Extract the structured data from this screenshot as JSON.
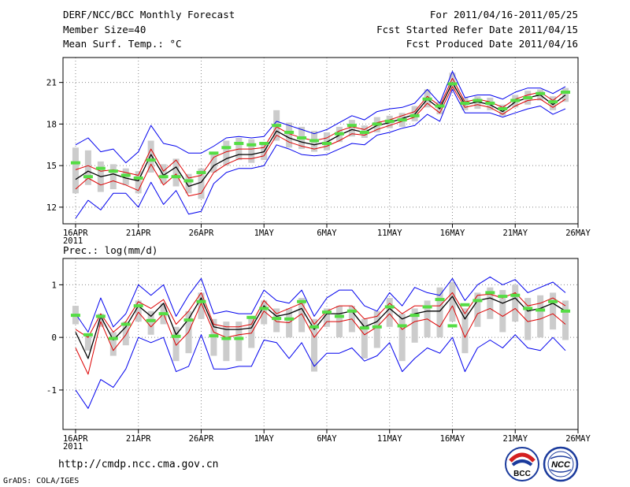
{
  "header": {
    "title": "DERF/NCC/BCC Monthly Forecast",
    "member_size": "Member Size=40",
    "variable": "Mean Surf. Temp.: °C",
    "period": "For 2011/04/16-2011/05/25",
    "started": "Fcst Started Refer Date 2011/04/15",
    "produced": "Fcst Produced Date 2011/04/16"
  },
  "footer": {
    "url": "http://cmdp.ncc.cma.gov.cn",
    "credit": "GrADS: COLA/IGES",
    "logo_bcc": "BCC",
    "logo_ncc": "NCC"
  },
  "colors": {
    "envelope": "#0000ee",
    "spread": "#dd0000",
    "mean": "#000000",
    "obs": "#55dd44",
    "box": "#cccccc",
    "grid": "#888888"
  },
  "chart_data": [
    {
      "type": "line",
      "title": "Mean Surf. Temp.: °C",
      "x_ticks": [
        {
          "day": 1,
          "label": "16APR",
          "sub": "2011"
        },
        {
          "day": 6,
          "label": "21APR"
        },
        {
          "day": 11,
          "label": "26APR"
        },
        {
          "day": 16,
          "label": "1MAY"
        },
        {
          "day": 21,
          "label": "6MAY"
        },
        {
          "day": 26,
          "label": "11MAY"
        },
        {
          "day": 31,
          "label": "16MAY"
        },
        {
          "day": 36,
          "label": "21MAY"
        },
        {
          "day": 41,
          "label": "26MAY"
        }
      ],
      "xlim": [
        0,
        41
      ],
      "ylim": [
        10.8,
        22.8
      ],
      "y_ticks": [
        12,
        15,
        18,
        21
      ],
      "days": [
        1,
        2,
        3,
        4,
        5,
        6,
        7,
        8,
        9,
        10,
        11,
        12,
        13,
        14,
        15,
        16,
        17,
        18,
        19,
        20,
        21,
        22,
        23,
        24,
        25,
        26,
        27,
        28,
        29,
        30,
        31,
        32,
        33,
        34,
        35,
        36,
        37,
        38,
        39,
        40
      ],
      "series": [
        {
          "name": "max",
          "values": [
            16.5,
            17.0,
            16.0,
            16.2,
            15.2,
            16.0,
            17.9,
            16.6,
            16.4,
            15.9,
            15.9,
            16.4,
            17.0,
            17.1,
            17.0,
            17.1,
            18.2,
            17.9,
            17.6,
            17.3,
            17.6,
            18.1,
            18.6,
            18.3,
            18.9,
            19.1,
            19.2,
            19.5,
            20.5,
            19.5,
            21.8,
            19.9,
            20.1,
            20.1,
            19.8,
            20.3,
            20.6,
            20.6,
            20.2,
            20.7
          ]
        },
        {
          "name": "upper",
          "values": [
            14.7,
            15.0,
            14.6,
            14.7,
            14.5,
            14.3,
            16.2,
            14.6,
            15.4,
            14.1,
            14.3,
            15.6,
            16.0,
            16.2,
            16.2,
            16.3,
            17.8,
            17.3,
            17.0,
            16.8,
            17.0,
            17.5,
            17.8,
            17.6,
            18.1,
            18.3,
            18.6,
            18.9,
            20.0,
            19.3,
            21.3,
            19.6,
            19.8,
            19.6,
            19.2,
            19.8,
            20.1,
            20.3,
            19.7,
            20.4
          ]
        },
        {
          "name": "mean",
          "values": [
            14.0,
            14.6,
            14.2,
            14.4,
            14.1,
            13.9,
            15.8,
            14.3,
            14.9,
            13.5,
            13.8,
            15.0,
            15.5,
            15.8,
            15.8,
            16.0,
            17.5,
            17.0,
            16.7,
            16.5,
            16.7,
            17.2,
            17.6,
            17.4,
            17.9,
            18.1,
            18.4,
            18.7,
            19.8,
            19.1,
            21.0,
            19.4,
            19.6,
            19.4,
            18.9,
            19.6,
            19.9,
            20.1,
            19.4,
            20.1
          ]
        },
        {
          "name": "lower",
          "values": [
            13.3,
            14.1,
            13.6,
            13.9,
            13.6,
            13.2,
            15.1,
            13.6,
            14.4,
            12.8,
            13.0,
            14.5,
            15.1,
            15.5,
            15.5,
            15.7,
            17.2,
            16.7,
            16.4,
            16.2,
            16.4,
            16.8,
            17.3,
            17.2,
            17.6,
            17.9,
            18.2,
            18.5,
            19.5,
            18.8,
            20.7,
            19.2,
            19.4,
            19.2,
            18.7,
            19.3,
            19.7,
            19.8,
            19.2,
            19.8
          ]
        },
        {
          "name": "min",
          "values": [
            11.2,
            12.5,
            11.8,
            13.0,
            13.0,
            12.0,
            13.8,
            12.2,
            13.2,
            11.5,
            11.7,
            13.7,
            14.5,
            14.8,
            14.8,
            15.0,
            16.5,
            16.2,
            15.8,
            15.7,
            15.8,
            16.2,
            16.6,
            16.5,
            17.2,
            17.4,
            17.7,
            17.9,
            18.7,
            18.2,
            20.5,
            18.8,
            18.8,
            18.8,
            18.5,
            18.8,
            19.1,
            19.3,
            18.7,
            19.1
          ]
        },
        {
          "name": "observed",
          "values": [
            15.2,
            14.2,
            14.8,
            14.6,
            14.3,
            14.1,
            15.4,
            14.2,
            14.2,
            13.9,
            14.5,
            15.9,
            16.3,
            16.6,
            16.5,
            16.6,
            17.9,
            17.4,
            17.0,
            16.8,
            16.6,
            17.3,
            17.9,
            17.4,
            18.0,
            18.2,
            18.3,
            18.6,
            19.8,
            19.3,
            20.9,
            19.5,
            19.7,
            19.5,
            19.1,
            19.7,
            19.9,
            20.2,
            19.6,
            20.3
          ]
        }
      ],
      "boxes": [
        [
          13.0,
          16.3
        ],
        [
          13.6,
          16.1
        ],
        [
          13.1,
          15.3
        ],
        [
          13.3,
          15.1
        ],
        [
          13.6,
          14.8
        ],
        [
          13.0,
          14.6
        ],
        [
          14.5,
          16.8
        ],
        [
          13.7,
          15.1
        ],
        [
          13.5,
          15.5
        ],
        [
          13.0,
          14.4
        ],
        [
          12.6,
          14.8
        ],
        [
          14.5,
          16.0
        ],
        [
          15.0,
          16.8
        ],
        [
          15.4,
          17.0
        ],
        [
          15.2,
          16.9
        ],
        [
          15.4,
          16.7
        ],
        [
          16.8,
          19.0
        ],
        [
          16.3,
          18.1
        ],
        [
          16.2,
          17.8
        ],
        [
          16.0,
          17.5
        ],
        [
          16.1,
          17.4
        ],
        [
          16.7,
          17.8
        ],
        [
          17.1,
          18.3
        ],
        [
          17.0,
          17.9
        ],
        [
          17.4,
          18.5
        ],
        [
          17.7,
          18.6
        ],
        [
          17.8,
          18.8
        ],
        [
          18.2,
          19.3
        ],
        [
          19.2,
          20.5
        ],
        [
          18.7,
          19.6
        ],
        [
          20.4,
          21.7
        ],
        [
          19.0,
          19.9
        ],
        [
          19.1,
          20.0
        ],
        [
          19.0,
          19.9
        ],
        [
          18.6,
          19.4
        ],
        [
          19.2,
          20.1
        ],
        [
          19.4,
          20.4
        ],
        [
          19.7,
          20.5
        ],
        [
          19.0,
          20.0
        ],
        [
          19.6,
          20.6
        ]
      ]
    },
    {
      "type": "line",
      "title": "Prec.: log(mm/d)",
      "x_ticks": [
        {
          "day": 1,
          "label": "16APR",
          "sub": "2011"
        },
        {
          "day": 6,
          "label": "21APR"
        },
        {
          "day": 11,
          "label": "26APR"
        },
        {
          "day": 16,
          "label": "1MAY"
        },
        {
          "day": 21,
          "label": "6MAY"
        },
        {
          "day": 26,
          "label": "11MAY"
        },
        {
          "day": 31,
          "label": "16MAY"
        },
        {
          "day": 36,
          "label": "21MAY"
        },
        {
          "day": 41,
          "label": "26MAY"
        }
      ],
      "xlim": [
        0,
        41
      ],
      "ylim": [
        -1.75,
        1.5
      ],
      "y_ticks": [
        -1,
        0,
        1
      ],
      "days": [
        1,
        2,
        3,
        4,
        5,
        6,
        7,
        8,
        9,
        10,
        11,
        12,
        13,
        14,
        15,
        16,
        17,
        18,
        19,
        20,
        21,
        22,
        23,
        24,
        25,
        26,
        27,
        28,
        29,
        30,
        31,
        32,
        33,
        34,
        35,
        36,
        37,
        38,
        39,
        40
      ],
      "series": [
        {
          "name": "max",
          "values": [
            0.45,
            0.1,
            0.75,
            0.2,
            0.45,
            1.0,
            0.8,
            1.0,
            0.4,
            0.8,
            1.12,
            0.45,
            0.5,
            0.45,
            0.45,
            0.9,
            0.7,
            0.65,
            0.9,
            0.4,
            0.75,
            0.9,
            0.9,
            0.6,
            0.5,
            0.85,
            0.6,
            0.95,
            0.85,
            0.8,
            1.12,
            0.7,
            1.0,
            1.15,
            1.0,
            1.1,
            0.85,
            0.95,
            1.05,
            0.85
          ]
        },
        {
          "name": "upper",
          "values": [
            0.15,
            0.0,
            0.45,
            0.1,
            0.3,
            0.68,
            0.55,
            0.72,
            0.25,
            0.5,
            0.85,
            0.25,
            0.2,
            0.2,
            0.25,
            0.7,
            0.45,
            0.55,
            0.65,
            0.25,
            0.5,
            0.6,
            0.6,
            0.35,
            0.4,
            0.65,
            0.45,
            0.6,
            0.6,
            0.6,
            0.85,
            0.45,
            0.8,
            0.82,
            0.75,
            0.85,
            0.6,
            0.65,
            0.75,
            0.6
          ]
        },
        {
          "name": "mean",
          "values": [
            0.1,
            -0.4,
            0.4,
            -0.05,
            0.2,
            0.6,
            0.4,
            0.65,
            0.05,
            0.35,
            0.75,
            0.2,
            0.15,
            0.15,
            0.18,
            0.6,
            0.4,
            0.45,
            0.55,
            0.15,
            0.45,
            0.45,
            0.5,
            0.2,
            0.3,
            0.55,
            0.35,
            0.45,
            0.5,
            0.5,
            0.78,
            0.35,
            0.7,
            0.75,
            0.65,
            0.75,
            0.5,
            0.55,
            0.65,
            0.5
          ]
        },
        {
          "name": "lower",
          "values": [
            -0.2,
            -0.7,
            0.3,
            -0.25,
            0.05,
            0.48,
            0.2,
            0.45,
            -0.15,
            0.1,
            0.65,
            0.1,
            0.0,
            0.05,
            0.08,
            0.5,
            0.3,
            0.28,
            0.45,
            0.0,
            0.3,
            0.3,
            0.35,
            0.05,
            0.2,
            0.45,
            0.15,
            0.3,
            0.35,
            0.2,
            0.6,
            0.0,
            0.45,
            0.55,
            0.4,
            0.55,
            0.3,
            0.35,
            0.45,
            0.25
          ]
        },
        {
          "name": "min",
          "values": [
            -1.0,
            -1.35,
            -0.8,
            -0.95,
            -0.6,
            0.0,
            -0.1,
            0.0,
            -0.65,
            -0.55,
            0.05,
            -0.6,
            -0.6,
            -0.55,
            -0.55,
            -0.05,
            -0.1,
            -0.4,
            -0.1,
            -0.55,
            -0.3,
            -0.3,
            -0.2,
            -0.45,
            -0.35,
            -0.1,
            -0.65,
            -0.4,
            -0.2,
            -0.3,
            0.0,
            -0.65,
            -0.2,
            -0.05,
            -0.2,
            0.05,
            -0.2,
            -0.25,
            0.0,
            -0.25
          ]
        },
        {
          "name": "observed",
          "values": [
            0.42,
            0.05,
            0.4,
            -0.02,
            0.25,
            0.6,
            0.32,
            0.45,
            0.02,
            0.33,
            0.68,
            0.03,
            -0.02,
            -0.02,
            0.38,
            0.55,
            0.36,
            0.35,
            0.68,
            0.2,
            0.48,
            0.4,
            0.5,
            0.18,
            0.2,
            0.58,
            0.22,
            0.42,
            0.58,
            0.72,
            0.22,
            0.62,
            0.7,
            0.85,
            0.78,
            0.8,
            0.55,
            0.52,
            0.68,
            0.5
          ]
        }
      ],
      "boxes": [
        [
          0.25,
          0.6
        ],
        [
          -0.25,
          0.05
        ],
        [
          0.2,
          0.45
        ],
        [
          -0.35,
          0.1
        ],
        [
          -0.15,
          0.3
        ],
        [
          0.3,
          0.7
        ],
        [
          0.05,
          0.5
        ],
        [
          0.25,
          0.65
        ],
        [
          -0.45,
          0.2
        ],
        [
          -0.3,
          0.5
        ],
        [
          0.35,
          0.85
        ],
        [
          -0.35,
          0.35
        ],
        [
          -0.45,
          0.3
        ],
        [
          -0.45,
          0.3
        ],
        [
          -0.2,
          0.4
        ],
        [
          0.25,
          0.7
        ],
        [
          0.1,
          0.55
        ],
        [
          0.0,
          0.55
        ],
        [
          0.1,
          0.75
        ],
        [
          -0.65,
          0.35
        ],
        [
          0.2,
          0.55
        ],
        [
          0.0,
          0.6
        ],
        [
          0.1,
          0.6
        ],
        [
          -0.4,
          0.35
        ],
        [
          -0.2,
          0.5
        ],
        [
          0.2,
          0.75
        ],
        [
          -0.45,
          0.45
        ],
        [
          -0.1,
          0.55
        ],
        [
          0.0,
          0.7
        ],
        [
          0.0,
          0.95
        ],
        [
          0.3,
          1.05
        ],
        [
          -0.3,
          0.55
        ],
        [
          0.2,
          0.85
        ],
        [
          0.35,
          0.95
        ],
        [
          0.1,
          0.9
        ],
        [
          0.3,
          1.0
        ],
        [
          -0.05,
          0.75
        ],
        [
          0.0,
          0.8
        ],
        [
          0.15,
          0.85
        ],
        [
          -0.05,
          0.7
        ]
      ]
    }
  ]
}
